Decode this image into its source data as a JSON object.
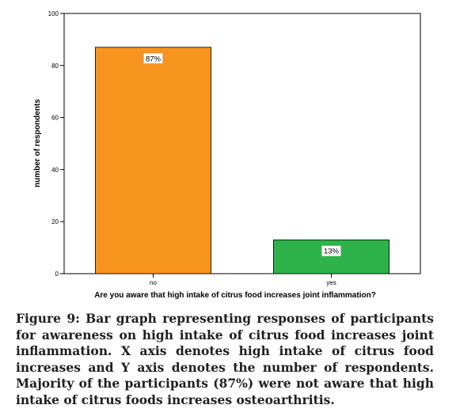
{
  "chart_data": {
    "type": "bar",
    "categories": [
      "no",
      "yes"
    ],
    "values": [
      87,
      13
    ],
    "data_labels": [
      "87%",
      "13%"
    ],
    "bar_colors": [
      "#f7941d",
      "#2db34a"
    ],
    "title": "",
    "xlabel": "Are you aware that high intake of citrus food increases joint inflammation?",
    "ylabel": "number of respondents",
    "ylim": [
      0,
      100
    ],
    "yticks": [
      0,
      20,
      40,
      60,
      80,
      100
    ],
    "grid": false,
    "legend": "none"
  },
  "caption": "Figure 9: Bar graph representing responses of participants for awareness on high intake of citrus food increases joint inflammation. X axis denotes high intake of citrus food increases and Y axis denotes the number of respondents. Majority of the participants (87%) were not aware that high intake of citrus foods increases osteoarthritis."
}
